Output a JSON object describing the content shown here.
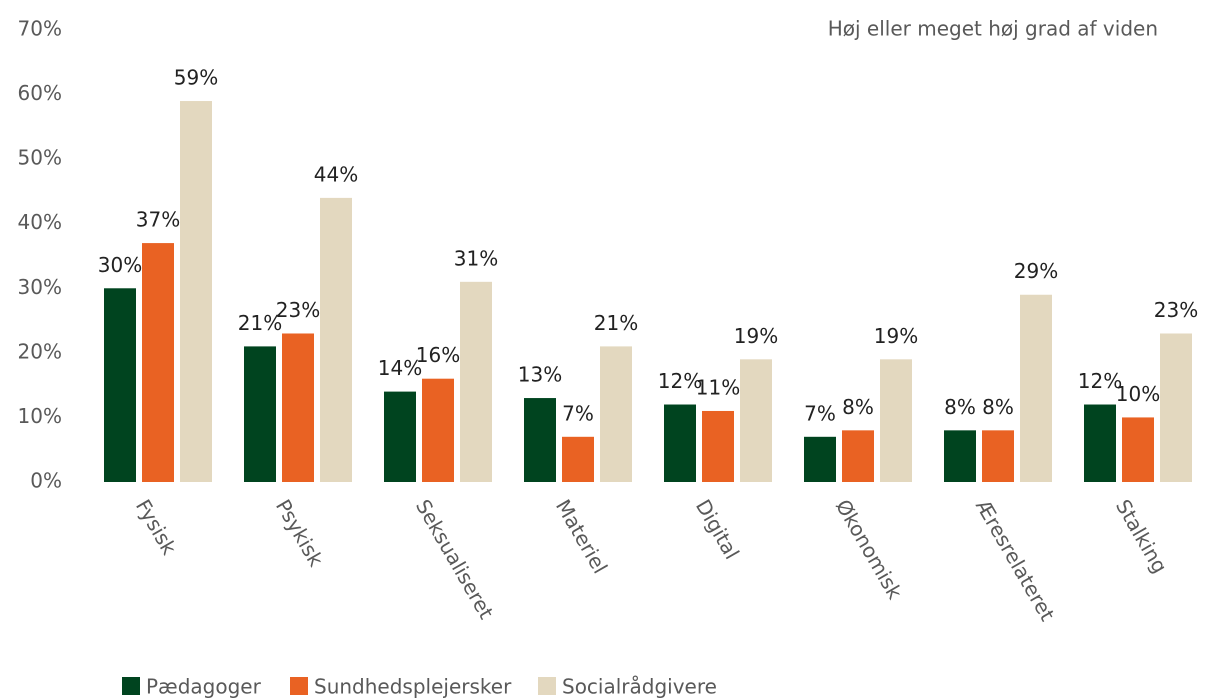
{
  "chart_data": {
    "type": "bar",
    "title": "Høj eller meget høj grad af viden",
    "categories": [
      "Fysisk",
      "Psykisk",
      "Seksualiseret",
      "Materiel",
      "Digital",
      "Økonomisk",
      "Æresrelateret",
      "Stalking"
    ],
    "series": [
      {
        "name": "Pædagoger",
        "color": "#00441f",
        "values": [
          30,
          21,
          14,
          13,
          12,
          7,
          8,
          12
        ],
        "value_labels": [
          "30%",
          "21%",
          "14%",
          "13%",
          "12%",
          "7%",
          "8%",
          "12%"
        ]
      },
      {
        "name": "Sundhedsplejersker",
        "color": "#e96223",
        "values": [
          37,
          23,
          16,
          7,
          11,
          8,
          8,
          10
        ],
        "value_labels": [
          "37%",
          "23%",
          "16%",
          "7%",
          "11%",
          "8%",
          "8%",
          "10%"
        ]
      },
      {
        "name": "Socialrådgivere",
        "color": "#e3d8bf",
        "values": [
          59,
          44,
          31,
          21,
          19,
          19,
          29,
          23
        ],
        "value_labels": [
          "59%",
          "44%",
          "31%",
          "21%",
          "19%",
          "19%",
          "29%",
          "23%"
        ]
      }
    ],
    "ylim": [
      0,
      70
    ],
    "yticks": [
      {
        "value": 0,
        "label": "0%"
      },
      {
        "value": 10,
        "label": "10%"
      },
      {
        "value": 20,
        "label": "20%"
      },
      {
        "value": 30,
        "label": "30%"
      },
      {
        "value": 40,
        "label": "40%"
      },
      {
        "value": 50,
        "label": "50%"
      },
      {
        "value": 60,
        "label": "60%"
      },
      {
        "value": 70,
        "label": "70%"
      }
    ],
    "grid": false,
    "legend": "bottom"
  }
}
